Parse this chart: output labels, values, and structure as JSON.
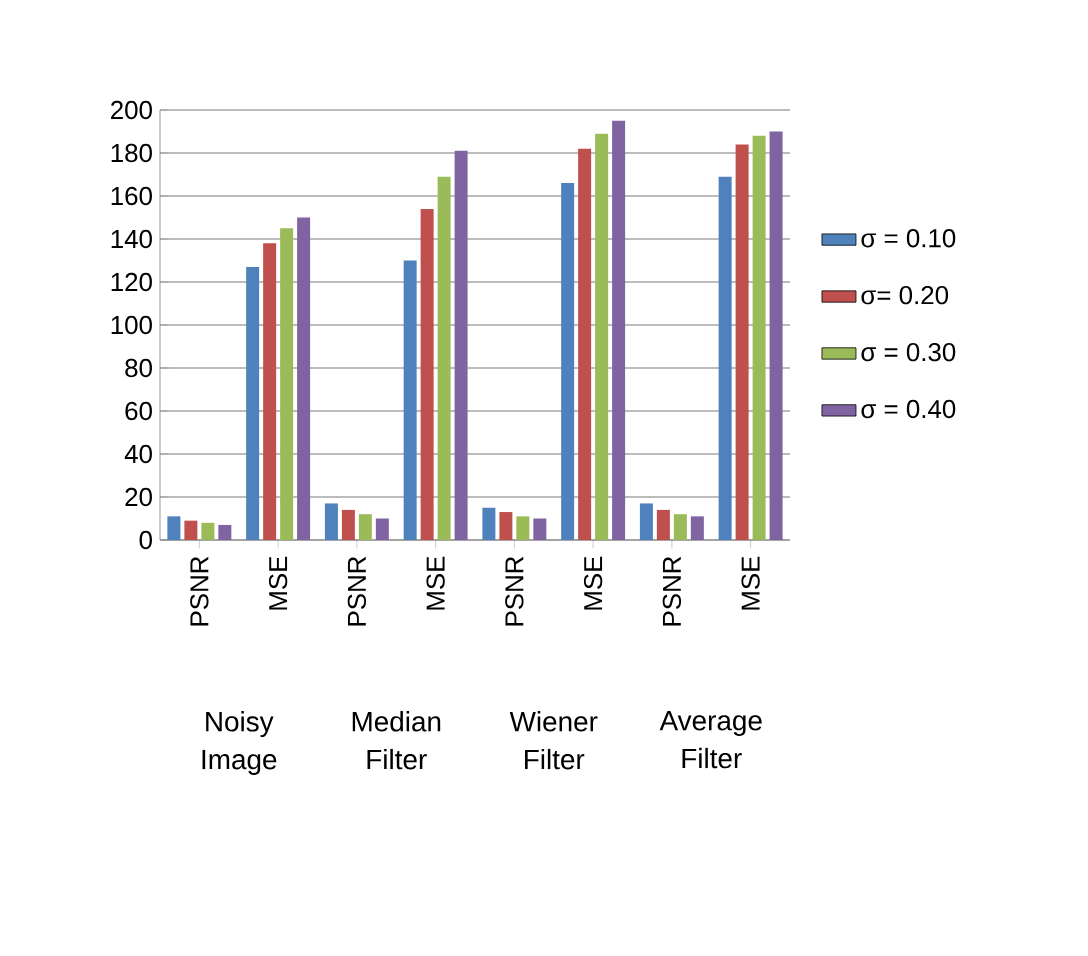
{
  "chart_data": {
    "type": "bar",
    "categories": [
      "PSNR",
      "MSE",
      "PSNR",
      "MSE",
      "PSNR",
      "MSE",
      "PSNR",
      "MSE"
    ],
    "series": [
      {
        "name": "σ = 0.10",
        "color": "#4f81bd",
        "values": [
          11,
          127,
          17,
          130,
          15,
          166,
          17,
          169
        ]
      },
      {
        "name": "σ= 0.20",
        "color": "#c0504d",
        "values": [
          9,
          138,
          14,
          154,
          13,
          182,
          14,
          184
        ]
      },
      {
        "name": "σ = 0.30",
        "color": "#9bbb59",
        "values": [
          8,
          145,
          12,
          169,
          11,
          189,
          12,
          188
        ]
      },
      {
        "name": "σ = 0.40",
        "color": "#8064a2",
        "values": [
          7,
          150,
          10,
          181,
          10,
          195,
          11,
          190
        ]
      }
    ],
    "annotations": [
      "Noisy Image",
      "Median Filter",
      "Wiener Filter",
      "Average Filter"
    ],
    "ylim": [
      0,
      200
    ],
    "yticks": [
      0,
      20,
      40,
      60,
      80,
      100,
      120,
      140,
      160,
      180,
      200
    ],
    "grid": "y",
    "legend": "right"
  }
}
